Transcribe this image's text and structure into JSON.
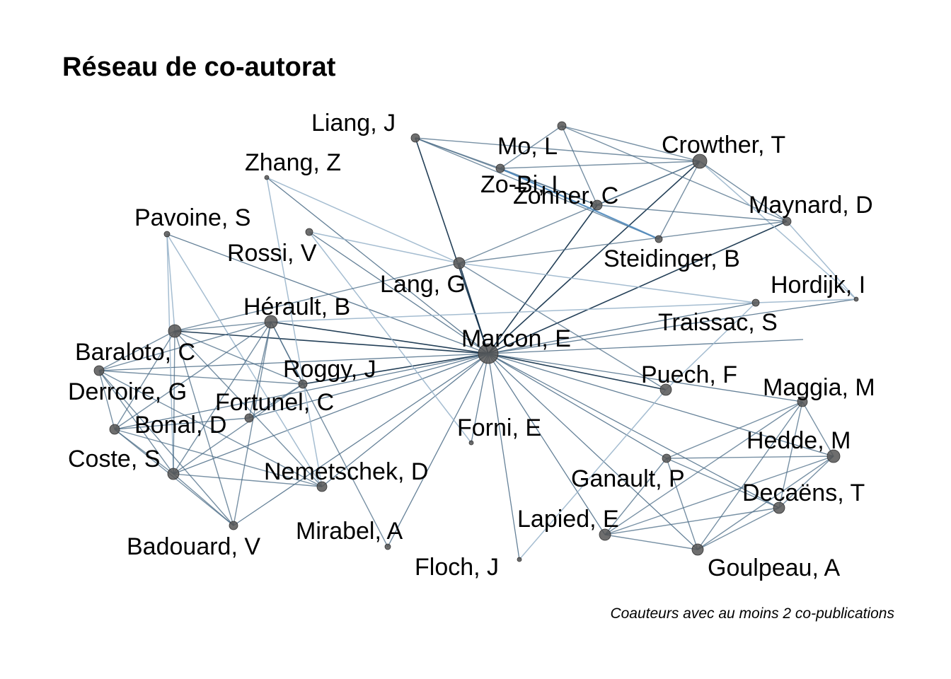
{
  "title": "Réseau de co-autorat",
  "caption": "Coauteurs avec au moins 2 co-publications",
  "colors": {
    "edge_strong": "#0b2a45",
    "edge_mid": "#4a6b86",
    "edge_light": "#9bb6cc",
    "edge_highlight": "#4f8fc8",
    "node_fill": "#555555"
  },
  "nodes": [
    {
      "id": "marcon",
      "label": "Marcon, E"
    },
    {
      "id": "liang",
      "label": "Liang, J"
    },
    {
      "id": "mo",
      "label": "Mo, L"
    },
    {
      "id": "crowther",
      "label": "Crowther, T"
    },
    {
      "id": "zhang",
      "label": "Zhang, Z"
    },
    {
      "id": "zobi",
      "label": "Zo-Bi, I"
    },
    {
      "id": "zohner",
      "label": "Zohner, C"
    },
    {
      "id": "maynard",
      "label": "Maynard, D"
    },
    {
      "id": "pavoine",
      "label": "Pavoine, S"
    },
    {
      "id": "rossi",
      "label": "Rossi, V"
    },
    {
      "id": "steidinger",
      "label": "Steidinger, B"
    },
    {
      "id": "lang",
      "label": "Lang, G"
    },
    {
      "id": "hordijk",
      "label": "Hordijk, I"
    },
    {
      "id": "herault",
      "label": "Hérault, B"
    },
    {
      "id": "traissac",
      "label": "Traissac, S"
    },
    {
      "id": "baraloto",
      "label": "Baraloto, C"
    },
    {
      "id": "roggy",
      "label": "Roggy, J"
    },
    {
      "id": "puech",
      "label": "Puech, F"
    },
    {
      "id": "derroire",
      "label": "Derroire, G"
    },
    {
      "id": "fortunel",
      "label": "Fortunel, C"
    },
    {
      "id": "maggia",
      "label": "Maggia, M"
    },
    {
      "id": "bonal",
      "label": "Bonal, D"
    },
    {
      "id": "forni",
      "label": "Forni, E"
    },
    {
      "id": "hedde",
      "label": "Hedde, M"
    },
    {
      "id": "coste",
      "label": "Coste, S"
    },
    {
      "id": "nemetschek",
      "label": "Nemetschek, D"
    },
    {
      "id": "ganault",
      "label": "Ganault, P"
    },
    {
      "id": "decaens",
      "label": "Decaëns, T"
    },
    {
      "id": "lapied",
      "label": "Lapied, E"
    },
    {
      "id": "badouard",
      "label": "Badouard, V"
    },
    {
      "id": "mirabel",
      "label": "Mirabel, A"
    },
    {
      "id": "floch",
      "label": "Floch, J"
    },
    {
      "id": "goulpeau",
      "label": "Goulpeau, A"
    },
    {
      "id": "anon1"
    },
    {
      "id": "anon2"
    }
  ],
  "edges": [
    [
      "marcon",
      "liang"
    ],
    [
      "marcon",
      "crowther"
    ],
    [
      "marcon",
      "zohner"
    ],
    [
      "marcon",
      "maynard"
    ],
    [
      "marcon",
      "zhang"
    ],
    [
      "marcon",
      "pavoine"
    ],
    [
      "marcon",
      "rossi"
    ],
    [
      "marcon",
      "lang"
    ],
    [
      "marcon",
      "hordijk"
    ],
    [
      "marcon",
      "herault"
    ],
    [
      "marcon",
      "traissac"
    ],
    [
      "marcon",
      "baraloto"
    ],
    [
      "marcon",
      "roggy"
    ],
    [
      "marcon",
      "puech"
    ],
    [
      "marcon",
      "derroire"
    ],
    [
      "marcon",
      "fortunel"
    ],
    [
      "marcon",
      "maggia"
    ],
    [
      "marcon",
      "bonal"
    ],
    [
      "marcon",
      "forni"
    ],
    [
      "marcon",
      "hedde"
    ],
    [
      "marcon",
      "coste"
    ],
    [
      "marcon",
      "nemetschek"
    ],
    [
      "marcon",
      "ganault"
    ],
    [
      "marcon",
      "decaens"
    ],
    [
      "marcon",
      "lapied"
    ],
    [
      "marcon",
      "badouard"
    ],
    [
      "marcon",
      "mirabel"
    ],
    [
      "marcon",
      "floch"
    ],
    [
      "marcon",
      "goulpeau"
    ],
    [
      "marcon",
      "anon2"
    ],
    [
      "liang",
      "mo"
    ],
    [
      "liang",
      "crowther"
    ],
    [
      "liang",
      "zohner"
    ],
    [
      "liang",
      "steidinger"
    ],
    [
      "mo",
      "crowther"
    ],
    [
      "mo",
      "zohner"
    ],
    [
      "mo",
      "steidinger"
    ],
    [
      "anon1",
      "crowther"
    ],
    [
      "anon1",
      "maynard"
    ],
    [
      "anon1",
      "zohner"
    ],
    [
      "anon1",
      "mo"
    ],
    [
      "crowther",
      "zohner"
    ],
    [
      "crowther",
      "maynard"
    ],
    [
      "crowther",
      "steidinger"
    ],
    [
      "crowther",
      "hordijk"
    ],
    [
      "crowther",
      "lang"
    ],
    [
      "zohner",
      "maynard"
    ],
    [
      "maynard",
      "hordijk"
    ],
    [
      "maynard",
      "lang"
    ],
    [
      "zhang",
      "lang"
    ],
    [
      "zhang",
      "nemetschek"
    ],
    [
      "rossi",
      "lang"
    ],
    [
      "rossi",
      "forni"
    ],
    [
      "lang",
      "baraloto"
    ],
    [
      "lang",
      "traissac"
    ],
    [
      "lang",
      "puech"
    ],
    [
      "traissac",
      "herault"
    ],
    [
      "traissac",
      "puech"
    ],
    [
      "traissac",
      "hordijk"
    ],
    [
      "pavoine",
      "baraloto"
    ],
    [
      "pavoine",
      "coste"
    ],
    [
      "pavoine",
      "nemetschek"
    ],
    [
      "herault",
      "baraloto"
    ],
    [
      "herault",
      "derroire"
    ],
    [
      "herault",
      "coste"
    ],
    [
      "herault",
      "roggy"
    ],
    [
      "herault",
      "bonal"
    ],
    [
      "herault",
      "mirabel"
    ],
    [
      "herault",
      "badouard"
    ],
    [
      "herault",
      "fortunel"
    ],
    [
      "baraloto",
      "derroire"
    ],
    [
      "baraloto",
      "coste"
    ],
    [
      "baraloto",
      "roggy"
    ],
    [
      "baraloto",
      "bonal"
    ],
    [
      "baraloto",
      "badouard"
    ],
    [
      "baraloto",
      "nemetschek"
    ],
    [
      "derroire",
      "coste"
    ],
    [
      "derroire",
      "bonal"
    ],
    [
      "derroire",
      "badouard"
    ],
    [
      "derroire",
      "roggy"
    ],
    [
      "derroire",
      "nemetschek"
    ],
    [
      "coste",
      "roggy"
    ],
    [
      "coste",
      "bonal"
    ],
    [
      "coste",
      "badouard"
    ],
    [
      "coste",
      "nemetschek"
    ],
    [
      "bonal",
      "badouard"
    ],
    [
      "bonal",
      "fortunel"
    ],
    [
      "bonal",
      "nemetschek"
    ],
    [
      "roggy",
      "fortunel"
    ],
    [
      "puech",
      "floch"
    ],
    [
      "maggia",
      "hedde"
    ],
    [
      "maggia",
      "decaens"
    ],
    [
      "maggia",
      "goulpeau"
    ],
    [
      "maggia",
      "lapied"
    ],
    [
      "maggia",
      "ganault"
    ],
    [
      "hedde",
      "decaens"
    ],
    [
      "hedde",
      "goulpeau"
    ],
    [
      "hedde",
      "lapied"
    ],
    [
      "hedde",
      "ganault"
    ],
    [
      "decaens",
      "goulpeau"
    ],
    [
      "decaens",
      "lapied"
    ],
    [
      "decaens",
      "ganault"
    ],
    [
      "goulpeau",
      "lapied"
    ],
    [
      "goulpeau",
      "ganault"
    ],
    [
      "lapied",
      "ganault"
    ]
  ]
}
